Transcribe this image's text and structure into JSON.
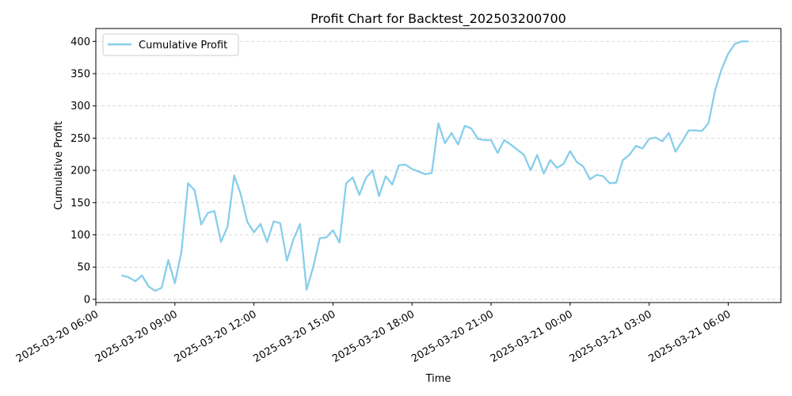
{
  "chart_data": {
    "type": "line",
    "title": "Profit Chart for Backtest_202503200700",
    "xlabel": "Time",
    "ylabel": "Cumulative Profit",
    "line_color": "#87ceeb",
    "grid": "y-dashed",
    "legend_position": "top-left",
    "x_tick_labels": [
      "2025-03-20 06:00",
      "2025-03-20 09:00",
      "2025-03-20 12:00",
      "2025-03-20 15:00",
      "2025-03-20 18:00",
      "2025-03-20 21:00",
      "2025-03-21 00:00",
      "2025-03-21 03:00",
      "2025-03-21 06:00"
    ],
    "y_ticks": [
      0,
      50,
      100,
      150,
      200,
      250,
      300,
      350,
      400
    ],
    "xlim": [
      "2025-03-20 06:00",
      "2025-03-21 08:00"
    ],
    "ylim": [
      -5,
      420
    ],
    "series": [
      {
        "name": "Cumulative Profit",
        "x": [
          "2025-03-20 07:00",
          "2025-03-20 07:15",
          "2025-03-20 07:30",
          "2025-03-20 07:45",
          "2025-03-20 08:00",
          "2025-03-20 08:15",
          "2025-03-20 08:30",
          "2025-03-20 08:45",
          "2025-03-20 09:00",
          "2025-03-20 09:15",
          "2025-03-20 09:30",
          "2025-03-20 09:45",
          "2025-03-20 10:00",
          "2025-03-20 10:15",
          "2025-03-20 10:30",
          "2025-03-20 10:45",
          "2025-03-20 11:00",
          "2025-03-20 11:15",
          "2025-03-20 11:30",
          "2025-03-20 11:45",
          "2025-03-20 12:00",
          "2025-03-20 12:15",
          "2025-03-20 12:30",
          "2025-03-20 12:45",
          "2025-03-20 13:00",
          "2025-03-20 13:15",
          "2025-03-20 13:30",
          "2025-03-20 13:45",
          "2025-03-20 14:00",
          "2025-03-20 14:15",
          "2025-03-20 14:30",
          "2025-03-20 14:45",
          "2025-03-20 15:00",
          "2025-03-20 15:15",
          "2025-03-20 15:30",
          "2025-03-20 15:45",
          "2025-03-20 16:00",
          "2025-03-20 16:15",
          "2025-03-20 16:30",
          "2025-03-20 16:45",
          "2025-03-20 17:00",
          "2025-03-20 17:15",
          "2025-03-20 17:30",
          "2025-03-20 17:45",
          "2025-03-20 18:00",
          "2025-03-20 18:15",
          "2025-03-20 18:30",
          "2025-03-20 18:45",
          "2025-03-20 19:00",
          "2025-03-20 19:15",
          "2025-03-20 19:30",
          "2025-03-20 19:45",
          "2025-03-20 20:00",
          "2025-03-20 20:15",
          "2025-03-20 20:30",
          "2025-03-20 20:45",
          "2025-03-20 21:00",
          "2025-03-20 21:15",
          "2025-03-20 21:30",
          "2025-03-20 21:45",
          "2025-03-20 22:00",
          "2025-03-20 22:15",
          "2025-03-20 22:30",
          "2025-03-20 22:45",
          "2025-03-20 23:00",
          "2025-03-20 23:15",
          "2025-03-20 23:30",
          "2025-03-20 23:45",
          "2025-03-21 00:00",
          "2025-03-21 00:15",
          "2025-03-21 00:30",
          "2025-03-21 00:45",
          "2025-03-21 01:00",
          "2025-03-21 01:15",
          "2025-03-21 01:30",
          "2025-03-21 01:45",
          "2025-03-21 02:00",
          "2025-03-21 02:15",
          "2025-03-21 02:30",
          "2025-03-21 02:45",
          "2025-03-21 03:00",
          "2025-03-21 03:15",
          "2025-03-21 03:30",
          "2025-03-21 03:45",
          "2025-03-21 04:00",
          "2025-03-21 04:15",
          "2025-03-21 04:30",
          "2025-03-21 04:45",
          "2025-03-21 05:00",
          "2025-03-21 05:15",
          "2025-03-21 05:30",
          "2025-03-21 05:45",
          "2025-03-21 06:00",
          "2025-03-21 06:15",
          "2025-03-21 06:30",
          "2025-03-21 06:45"
        ],
        "values": [
          37,
          34,
          28,
          37,
          20,
          13,
          18,
          61,
          25,
          74,
          180,
          169,
          116,
          134,
          137,
          89,
          113,
          192,
          163,
          120,
          104,
          117,
          89,
          121,
          118,
          60,
          93,
          117,
          15,
          50,
          95,
          96,
          107,
          88,
          180,
          189,
          162,
          188,
          200,
          160,
          191,
          178,
          208,
          209,
          202,
          198,
          194,
          196,
          273,
          242,
          258,
          240,
          269,
          265,
          249,
          247,
          247,
          227,
          247,
          240,
          232,
          224,
          200,
          224,
          195,
          216,
          204,
          210,
          230,
          213,
          206,
          186,
          193,
          191,
          180,
          181,
          216,
          224,
          238,
          234,
          249,
          251,
          245,
          258,
          229,
          245,
          262,
          262,
          261,
          273,
          324,
          357,
          381,
          396,
          400,
          400
        ]
      }
    ]
  }
}
